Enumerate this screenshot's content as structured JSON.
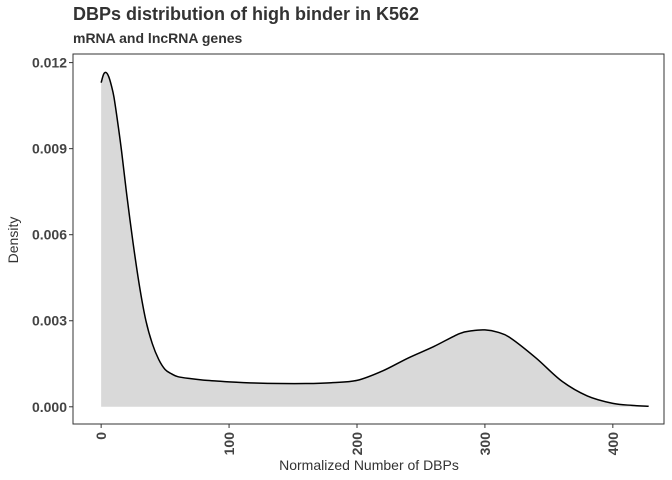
{
  "chart_data": {
    "type": "area",
    "title": "DBPs distribution of high binder in K562",
    "subtitle": "mRNA and lncRNA genes",
    "xlabel": "Normalized Number of DBPs",
    "ylabel": "Density",
    "xlim": [
      -22,
      440
    ],
    "ylim": [
      -0.0006,
      0.0123
    ],
    "x_ticks": [
      0,
      100,
      200,
      300,
      400
    ],
    "x_tick_labels": [
      "0",
      "100",
      "200",
      "300",
      "400"
    ],
    "y_ticks": [
      0.0,
      0.003,
      0.006,
      0.009,
      0.012
    ],
    "y_tick_labels": [
      "0.000",
      "0.003",
      "0.006",
      "0.009",
      "0.012"
    ],
    "grid": false,
    "fill_color": "#d9d9d9",
    "line_color": "#000000",
    "series": [
      {
        "x": [
          0,
          2,
          4,
          6,
          8,
          10,
          13,
          16,
          20,
          25,
          30,
          35,
          40,
          45,
          50,
          55,
          60,
          70,
          80,
          90,
          100,
          120,
          140,
          160,
          180,
          200,
          220,
          240,
          260,
          280,
          290,
          300,
          310,
          320,
          340,
          360,
          380,
          400,
          415,
          428
        ],
        "y": [
          0.0113,
          0.0116,
          0.01165,
          0.0115,
          0.0112,
          0.0108,
          0.0099,
          0.0089,
          0.0074,
          0.0057,
          0.0042,
          0.003,
          0.0022,
          0.00165,
          0.0013,
          0.00115,
          0.00105,
          0.00098,
          0.00093,
          0.0009,
          0.00087,
          0.00083,
          0.00081,
          0.00081,
          0.00084,
          0.00092,
          0.00125,
          0.0017,
          0.0021,
          0.00255,
          0.00265,
          0.00268,
          0.0026,
          0.0024,
          0.0017,
          0.0009,
          0.00038,
          0.00012,
          5e-05,
          2e-05
        ]
      }
    ]
  }
}
